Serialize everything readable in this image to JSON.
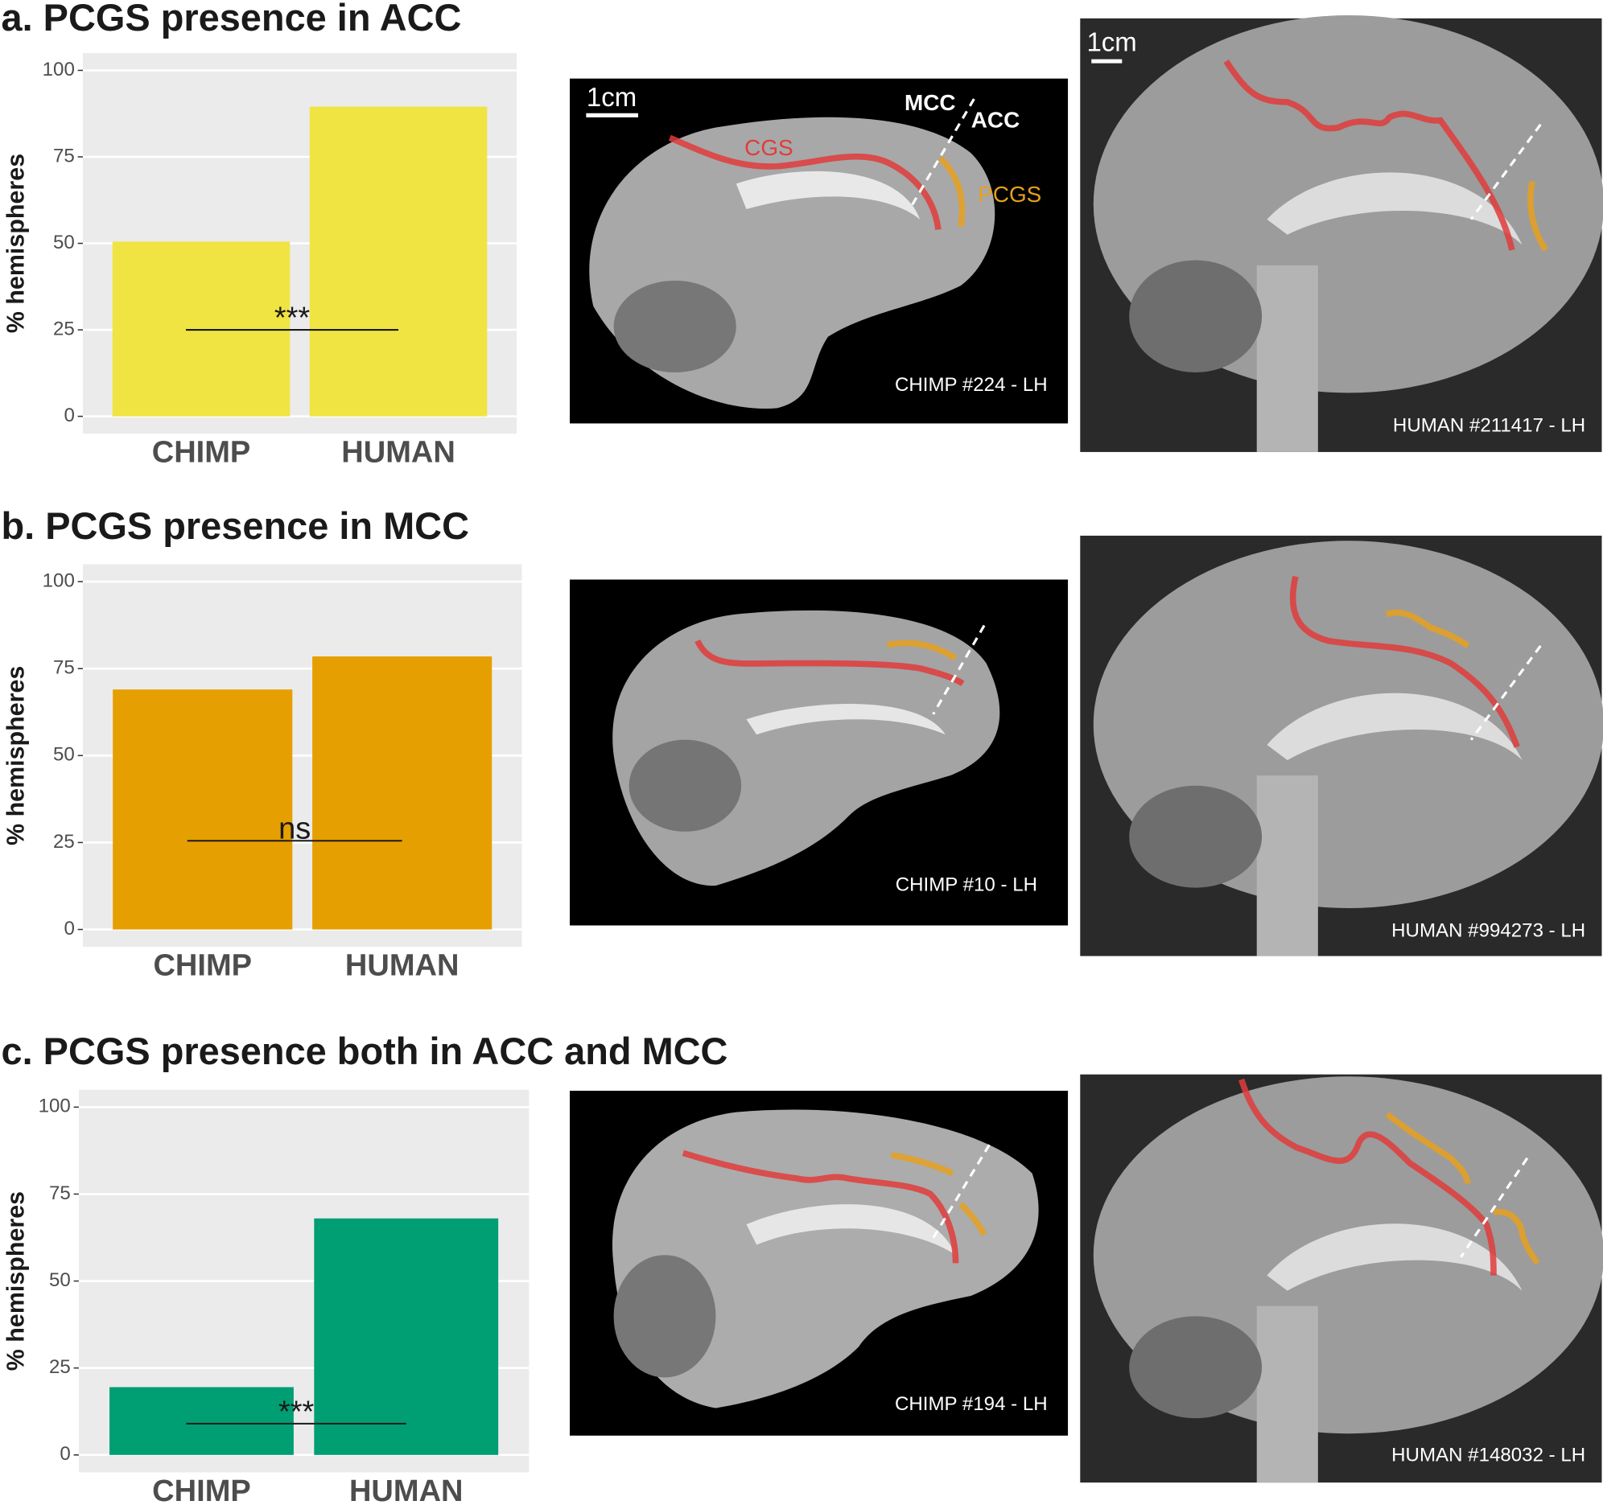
{
  "chart_data": [
    {
      "type": "bar",
      "title": "a. PCGS presence in ACC",
      "y_label": "% hemispheres",
      "categories": [
        "CHIMP",
        "HUMAN"
      ],
      "values": [
        50.5,
        89.5
      ],
      "color": "#f0e442",
      "ylim": [
        -5,
        105
      ],
      "yticks": [
        0,
        25,
        50,
        75,
        100
      ],
      "grid": true,
      "annotation": {
        "label": "***",
        "y": 25
      }
    },
    {
      "type": "bar",
      "title": "b. PCGS presence in MCC",
      "y_label": "% hemispheres",
      "categories": [
        "CHIMP",
        "HUMAN"
      ],
      "values": [
        69,
        78.5
      ],
      "color": "#e69f00",
      "ylim": [
        -5,
        105
      ],
      "yticks": [
        0,
        25,
        50,
        75,
        100
      ],
      "grid": true,
      "annotation": {
        "label": "ns",
        "y": 25.5
      }
    },
    {
      "type": "bar",
      "title": "c. PCGS presence both in ACC and MCC",
      "y_label": "% hemispheres",
      "categories": [
        "CHIMP",
        "HUMAN"
      ],
      "values": [
        19.5,
        68
      ],
      "color": "#009e73",
      "ylim": [
        -5,
        105
      ],
      "yticks": [
        0,
        25,
        50,
        75,
        100
      ],
      "grid": true,
      "annotation": {
        "label": "***",
        "y": 9
      }
    }
  ],
  "images": [
    {
      "caption": "CHIMP #224 - LH",
      "scale_bar": "1cm",
      "labels": [
        "CGS",
        "PCGS",
        "MCC",
        "ACC"
      ]
    },
    {
      "caption": "HUMAN #211417 - LH",
      "scale_bar": "1cm"
    },
    {
      "caption": "CHIMP #10 - LH"
    },
    {
      "caption": "HUMAN #994273 - LH"
    },
    {
      "caption": "CHIMP #194 - LH"
    },
    {
      "caption": "HUMAN #148032 - LH"
    }
  ]
}
